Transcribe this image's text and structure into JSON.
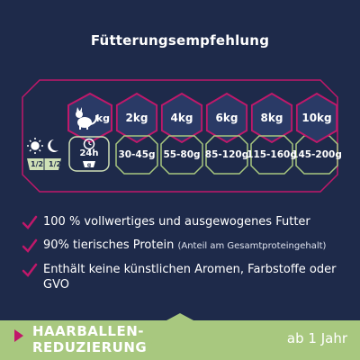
{
  "title": "Fütterungsempfehlung",
  "cat_unit": "kg",
  "weights": [
    "2kg",
    "4kg",
    "6kg",
    "8kg",
    "10kg"
  ],
  "clock_label": "24h",
  "portions": [
    [
      "30-",
      "45g"
    ],
    [
      "55-",
      "80g"
    ],
    [
      "85-",
      "120g"
    ],
    [
      "115-",
      "160g"
    ],
    [
      "145-",
      "200g"
    ]
  ],
  "half_left": "1/2",
  "half_right": "1/2",
  "bullets": [
    {
      "text": "100 % vollwertiges und ausgewogenes Futter",
      "small": ""
    },
    {
      "text": "90% tierisches Protein ",
      "small": "(Anteil am Gesamtproteingehalt)"
    },
    {
      "text": "Enthält keine künstlichen Aromen, Farbstoffe oder GVO",
      "small": ""
    }
  ],
  "footer": {
    "tag_line1": "HAARBALLEN-",
    "tag_line2": "REDUZIERUNG",
    "age": "ab 1 Jahr"
  },
  "colors": {
    "background": "#1e2a4a",
    "accent": "#c0186a",
    "green": "#a8c87f",
    "light_green": "#cfe0b6"
  }
}
